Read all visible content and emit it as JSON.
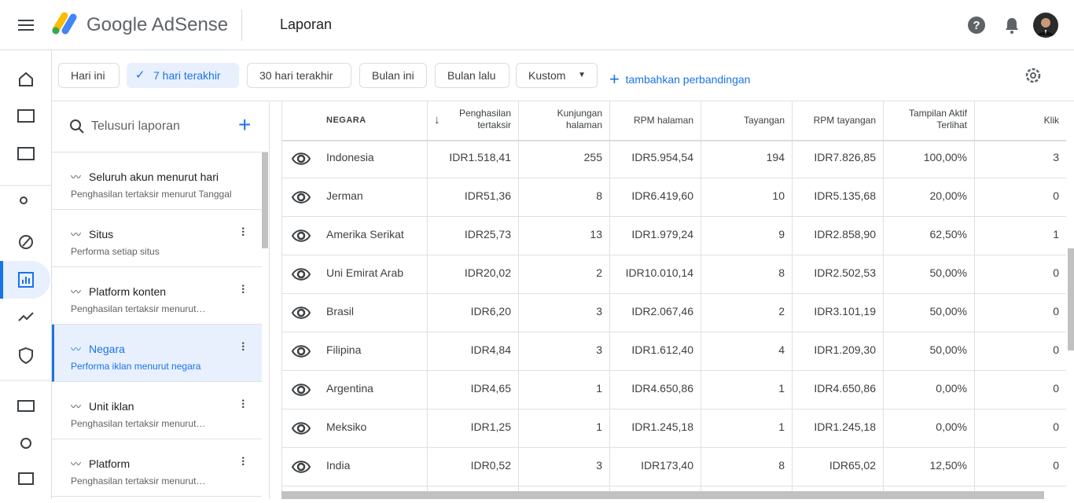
{
  "header": {
    "brand": "Google AdSense",
    "page_title": "Laporan"
  },
  "filters": {
    "chips": [
      "Hari ini",
      "7 hari terakhir",
      "30 hari terakhir",
      "Bulan ini",
      "Bulan lalu",
      "Kustom"
    ],
    "add_comparison": "tambahkan perbandingan"
  },
  "search": {
    "placeholder": "Telusuri laporan"
  },
  "reports": [
    {
      "title": "Seluruh akun menurut hari",
      "subtitle": "Penghasilan tertaksir menurut Tanggal"
    },
    {
      "title": "Situs",
      "subtitle": "Performa setiap situs"
    },
    {
      "title": "Platform konten",
      "subtitle": "Penghasilan tertaksir menurut…"
    },
    {
      "title": "Negara",
      "subtitle": "Performa iklan menurut negara"
    },
    {
      "title": "Unit iklan",
      "subtitle": "Penghasilan tertaksir menurut…"
    },
    {
      "title": "Platform",
      "subtitle": "Penghasilan tertaksir menurut…"
    }
  ],
  "table": {
    "columns": [
      "NEGARA",
      "Penghasilan tertaksir",
      "Kunjungan halaman",
      "RPM halaman",
      "Tayangan",
      "RPM tayangan",
      "Tampilan Aktif Terlihat",
      "Klik"
    ],
    "rows": [
      [
        "Indonesia",
        "IDR1.518,41",
        "255",
        "IDR5.954,54",
        "194",
        "IDR7.826,85",
        "100,00%",
        "3"
      ],
      [
        "Jerman",
        "IDR51,36",
        "8",
        "IDR6.419,60",
        "10",
        "IDR5.135,68",
        "20,00%",
        "0"
      ],
      [
        "Amerika Serikat",
        "IDR25,73",
        "13",
        "IDR1.979,24",
        "9",
        "IDR2.858,90",
        "62,50%",
        "1"
      ],
      [
        "Uni Emirat Arab",
        "IDR20,02",
        "2",
        "IDR10.010,14",
        "8",
        "IDR2.502,53",
        "50,00%",
        "0"
      ],
      [
        "Brasil",
        "IDR6,20",
        "3",
        "IDR2.067,46",
        "2",
        "IDR3.101,19",
        "50,00%",
        "0"
      ],
      [
        "Filipina",
        "IDR4,84",
        "3",
        "IDR1.612,40",
        "4",
        "IDR1.209,30",
        "50,00%",
        "0"
      ],
      [
        "Argentina",
        "IDR4,65",
        "1",
        "IDR4.650,86",
        "1",
        "IDR4.650,86",
        "0,00%",
        "0"
      ],
      [
        "Meksiko",
        "IDR1,25",
        "1",
        "IDR1.245,18",
        "1",
        "IDR1.245,18",
        "0,00%",
        "0"
      ],
      [
        "India",
        "IDR0,52",
        "3",
        "IDR173,40",
        "8",
        "IDR65,02",
        "12,50%",
        "0"
      ]
    ]
  }
}
